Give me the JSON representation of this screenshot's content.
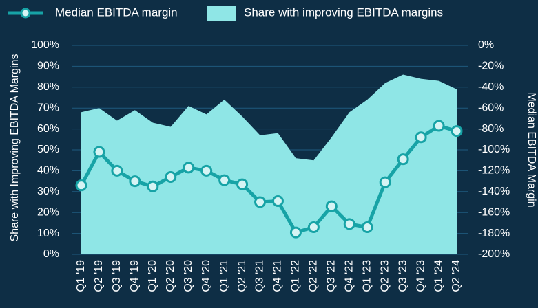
{
  "chart_data": {
    "type": "combo",
    "categories": [
      "Q1 '19",
      "Q2 '19",
      "Q3 '19",
      "Q4 '19",
      "Q1 '20",
      "Q2 '20",
      "Q3 '20",
      "Q4 '20",
      "Q1 '21",
      "Q2 '21",
      "Q3 '21",
      "Q4 '21",
      "Q1 '22",
      "Q2 '22",
      "Q3 '22",
      "Q4 '22",
      "Q1 '23",
      "Q2 '23",
      "Q3 '23",
      "Q4 '23",
      "Q1 '24",
      "Q2 '24"
    ],
    "series": [
      {
        "name": "Median EBITDA margin",
        "type": "line",
        "axis": "y2",
        "color": "#17a3a6",
        "values": [
          -134,
          -102,
          -120,
          -130,
          -135,
          -126,
          -117,
          -120,
          -129,
          -133,
          -150,
          -149,
          -179,
          -174,
          -154,
          -171,
          -174,
          -131,
          -109,
          -88,
          -77,
          -82
        ]
      },
      {
        "name": "Share with improving EBITDA margins",
        "type": "area",
        "color": "#8fe6e6",
        "values": [
          68,
          70,
          64,
          69,
          63,
          61,
          71,
          67,
          74,
          66,
          57,
          58,
          46,
          45,
          56,
          68,
          74,
          82,
          86,
          84,
          83,
          79
        ]
      }
    ],
    "ylabel": "Share with Improving EBITDA Margins",
    "y2label": "Median EBITDA Margin",
    "ylim": [
      0,
      100
    ],
    "yticks": [
      {
        "value": 0,
        "label": "0%"
      },
      {
        "value": 10,
        "label": "10%"
      },
      {
        "value": 20,
        "label": "20%"
      },
      {
        "value": 30,
        "label": "30%"
      },
      {
        "value": 40,
        "label": "40%"
      },
      {
        "value": 50,
        "label": "50%"
      },
      {
        "value": 60,
        "label": "60%"
      },
      {
        "value": 70,
        "label": "70%"
      },
      {
        "value": 80,
        "label": "80%"
      },
      {
        "value": 90,
        "label": "90%"
      },
      {
        "value": 100,
        "label": "100%"
      }
    ],
    "y2lim": [
      -200,
      0
    ],
    "y2ticks": [
      {
        "value": -200,
        "label": "-200%"
      },
      {
        "value": -180,
        "label": "-180%"
      },
      {
        "value": -160,
        "label": "-160%"
      },
      {
        "value": -140,
        "label": "-140%"
      },
      {
        "value": -120,
        "label": "-120%"
      },
      {
        "value": -100,
        "label": "-100%"
      },
      {
        "value": -80,
        "label": "-80%"
      },
      {
        "value": -60,
        "label": "-60%"
      },
      {
        "value": -40,
        "label": "-40%"
      },
      {
        "value": -20,
        "label": "-20%"
      },
      {
        "value": 0,
        "label": "0%"
      }
    ],
    "grid": true,
    "legend": "top"
  }
}
